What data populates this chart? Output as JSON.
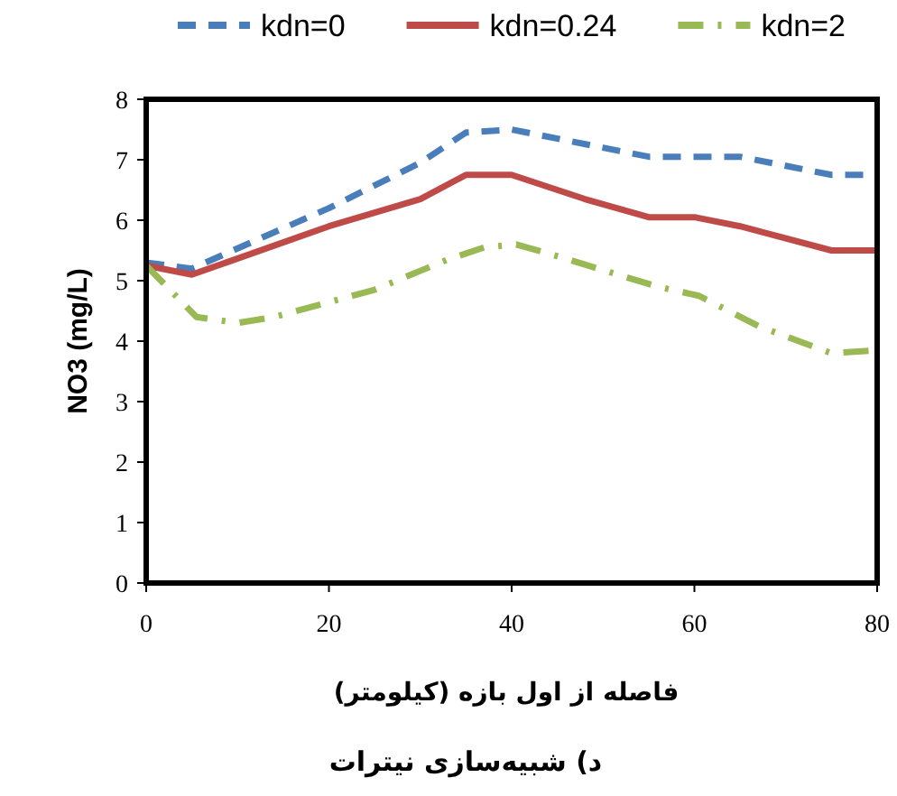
{
  "chart_data": {
    "type": "line",
    "title": "د) شبیه‌سازی نیترات",
    "xlabel": "فاصله از اول بازه (کیلومتر)",
    "ylabel": "NO3 (mg/L)",
    "xlim": [
      0,
      80
    ],
    "xticks": [
      0,
      20,
      40,
      60,
      80
    ],
    "ylim": [
      0,
      8
    ],
    "yticks": [
      0,
      1,
      2,
      3,
      4,
      5,
      6,
      7,
      8
    ],
    "grid": false,
    "legend": "top",
    "series": [
      {
        "name": "kdn=0",
        "color": "#4a7ebb",
        "line_style": "dashed",
        "x": [
          0,
          5,
          20,
          30,
          35,
          40,
          50,
          55,
          65,
          75,
          80
        ],
        "values": [
          5.3,
          5.2,
          6.2,
          6.95,
          7.45,
          7.5,
          7.2,
          7.05,
          7.05,
          6.75,
          6.75
        ]
      },
      {
        "name": "kdn=0.24",
        "color": "#be4b48",
        "line_style": "solid",
        "x": [
          0,
          5,
          20,
          30,
          35,
          40,
          48,
          55,
          60,
          65,
          75,
          80
        ],
        "values": [
          5.25,
          5.1,
          5.9,
          6.35,
          6.75,
          6.75,
          6.35,
          6.05,
          6.05,
          5.9,
          5.5,
          5.5
        ]
      },
      {
        "name": "kdn=2",
        "color": "#98b954",
        "line_style": "dashdot",
        "x": [
          0,
          5.5,
          10,
          14,
          25,
          33,
          37,
          40.5,
          44,
          56,
          60.5,
          67,
          75,
          80
        ],
        "values": [
          5.25,
          4.4,
          4.3,
          4.4,
          4.85,
          5.35,
          5.55,
          5.6,
          5.45,
          4.9,
          4.75,
          4.25,
          3.8,
          3.85
        ]
      }
    ]
  }
}
